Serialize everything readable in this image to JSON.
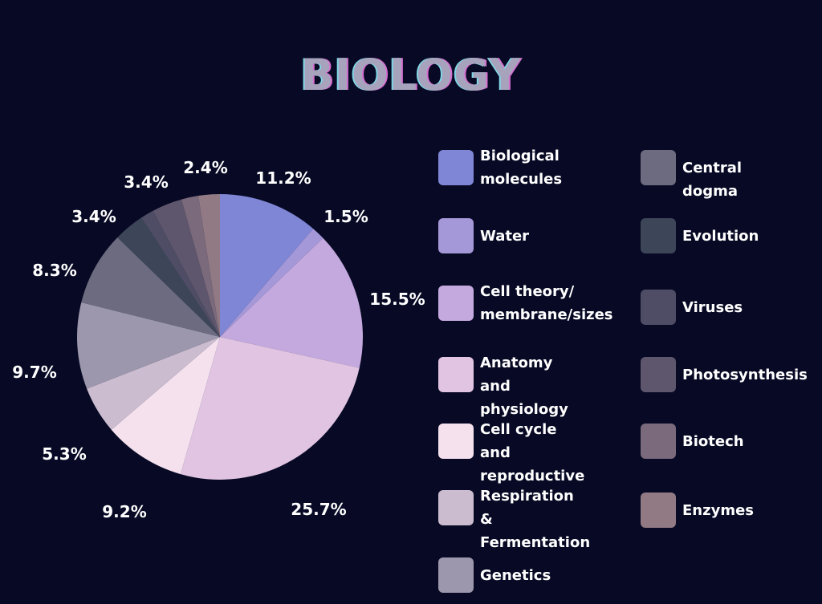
{
  "chart_data": {
    "type": "pie",
    "title": "BIOLOGY",
    "slices": [
      {
        "label": "Biological\nmolecules",
        "value": 11.2,
        "value_label": "11.2%",
        "color": "#7f86d6"
      },
      {
        "label": "Water",
        "value": 1.5,
        "value_label": "1.5%",
        "color": "#a498d8"
      },
      {
        "label": "Cell theory/\nmembrane/sizes",
        "value": 15.5,
        "value_label": "15.5%",
        "color": "#c4a9de"
      },
      {
        "label": "Anatomy and\nphysiology",
        "value": 25.7,
        "value_label": "25.7%",
        "color": "#e0c4e2"
      },
      {
        "label": "Cell cycle and\nreproductive",
        "value": 9.2,
        "value_label": "9.2%",
        "color": "#f5e1ee"
      },
      {
        "label": "Respiration &\nFermentation",
        "value": 5.3,
        "value_label": "5.3%",
        "color": "#cbbccf"
      },
      {
        "label": "Genetics",
        "value": 9.7,
        "value_label": "9.7%",
        "color": "#9c97ad"
      },
      {
        "label": "Central dogma",
        "value": 8.3,
        "value_label": "8.3%",
        "color": "#6c6b80"
      },
      {
        "label": "Evolution",
        "value": 3.4,
        "value_label": "3.4%",
        "color": "#3c4658"
      },
      {
        "label": "Viruses",
        "value": 1.5,
        "value_label": "",
        "color": "#4f4d66"
      },
      {
        "label": "Photosynthesis",
        "value": 3.4,
        "value_label": "3.4%",
        "color": "#5e566c"
      },
      {
        "label": "Biotech",
        "value": 1.9,
        "value_label": "",
        "color": "#7a6a7c"
      },
      {
        "label": "Enzymes",
        "value": 2.4,
        "value_label": "2.4%",
        "color": "#917a84"
      }
    ]
  }
}
